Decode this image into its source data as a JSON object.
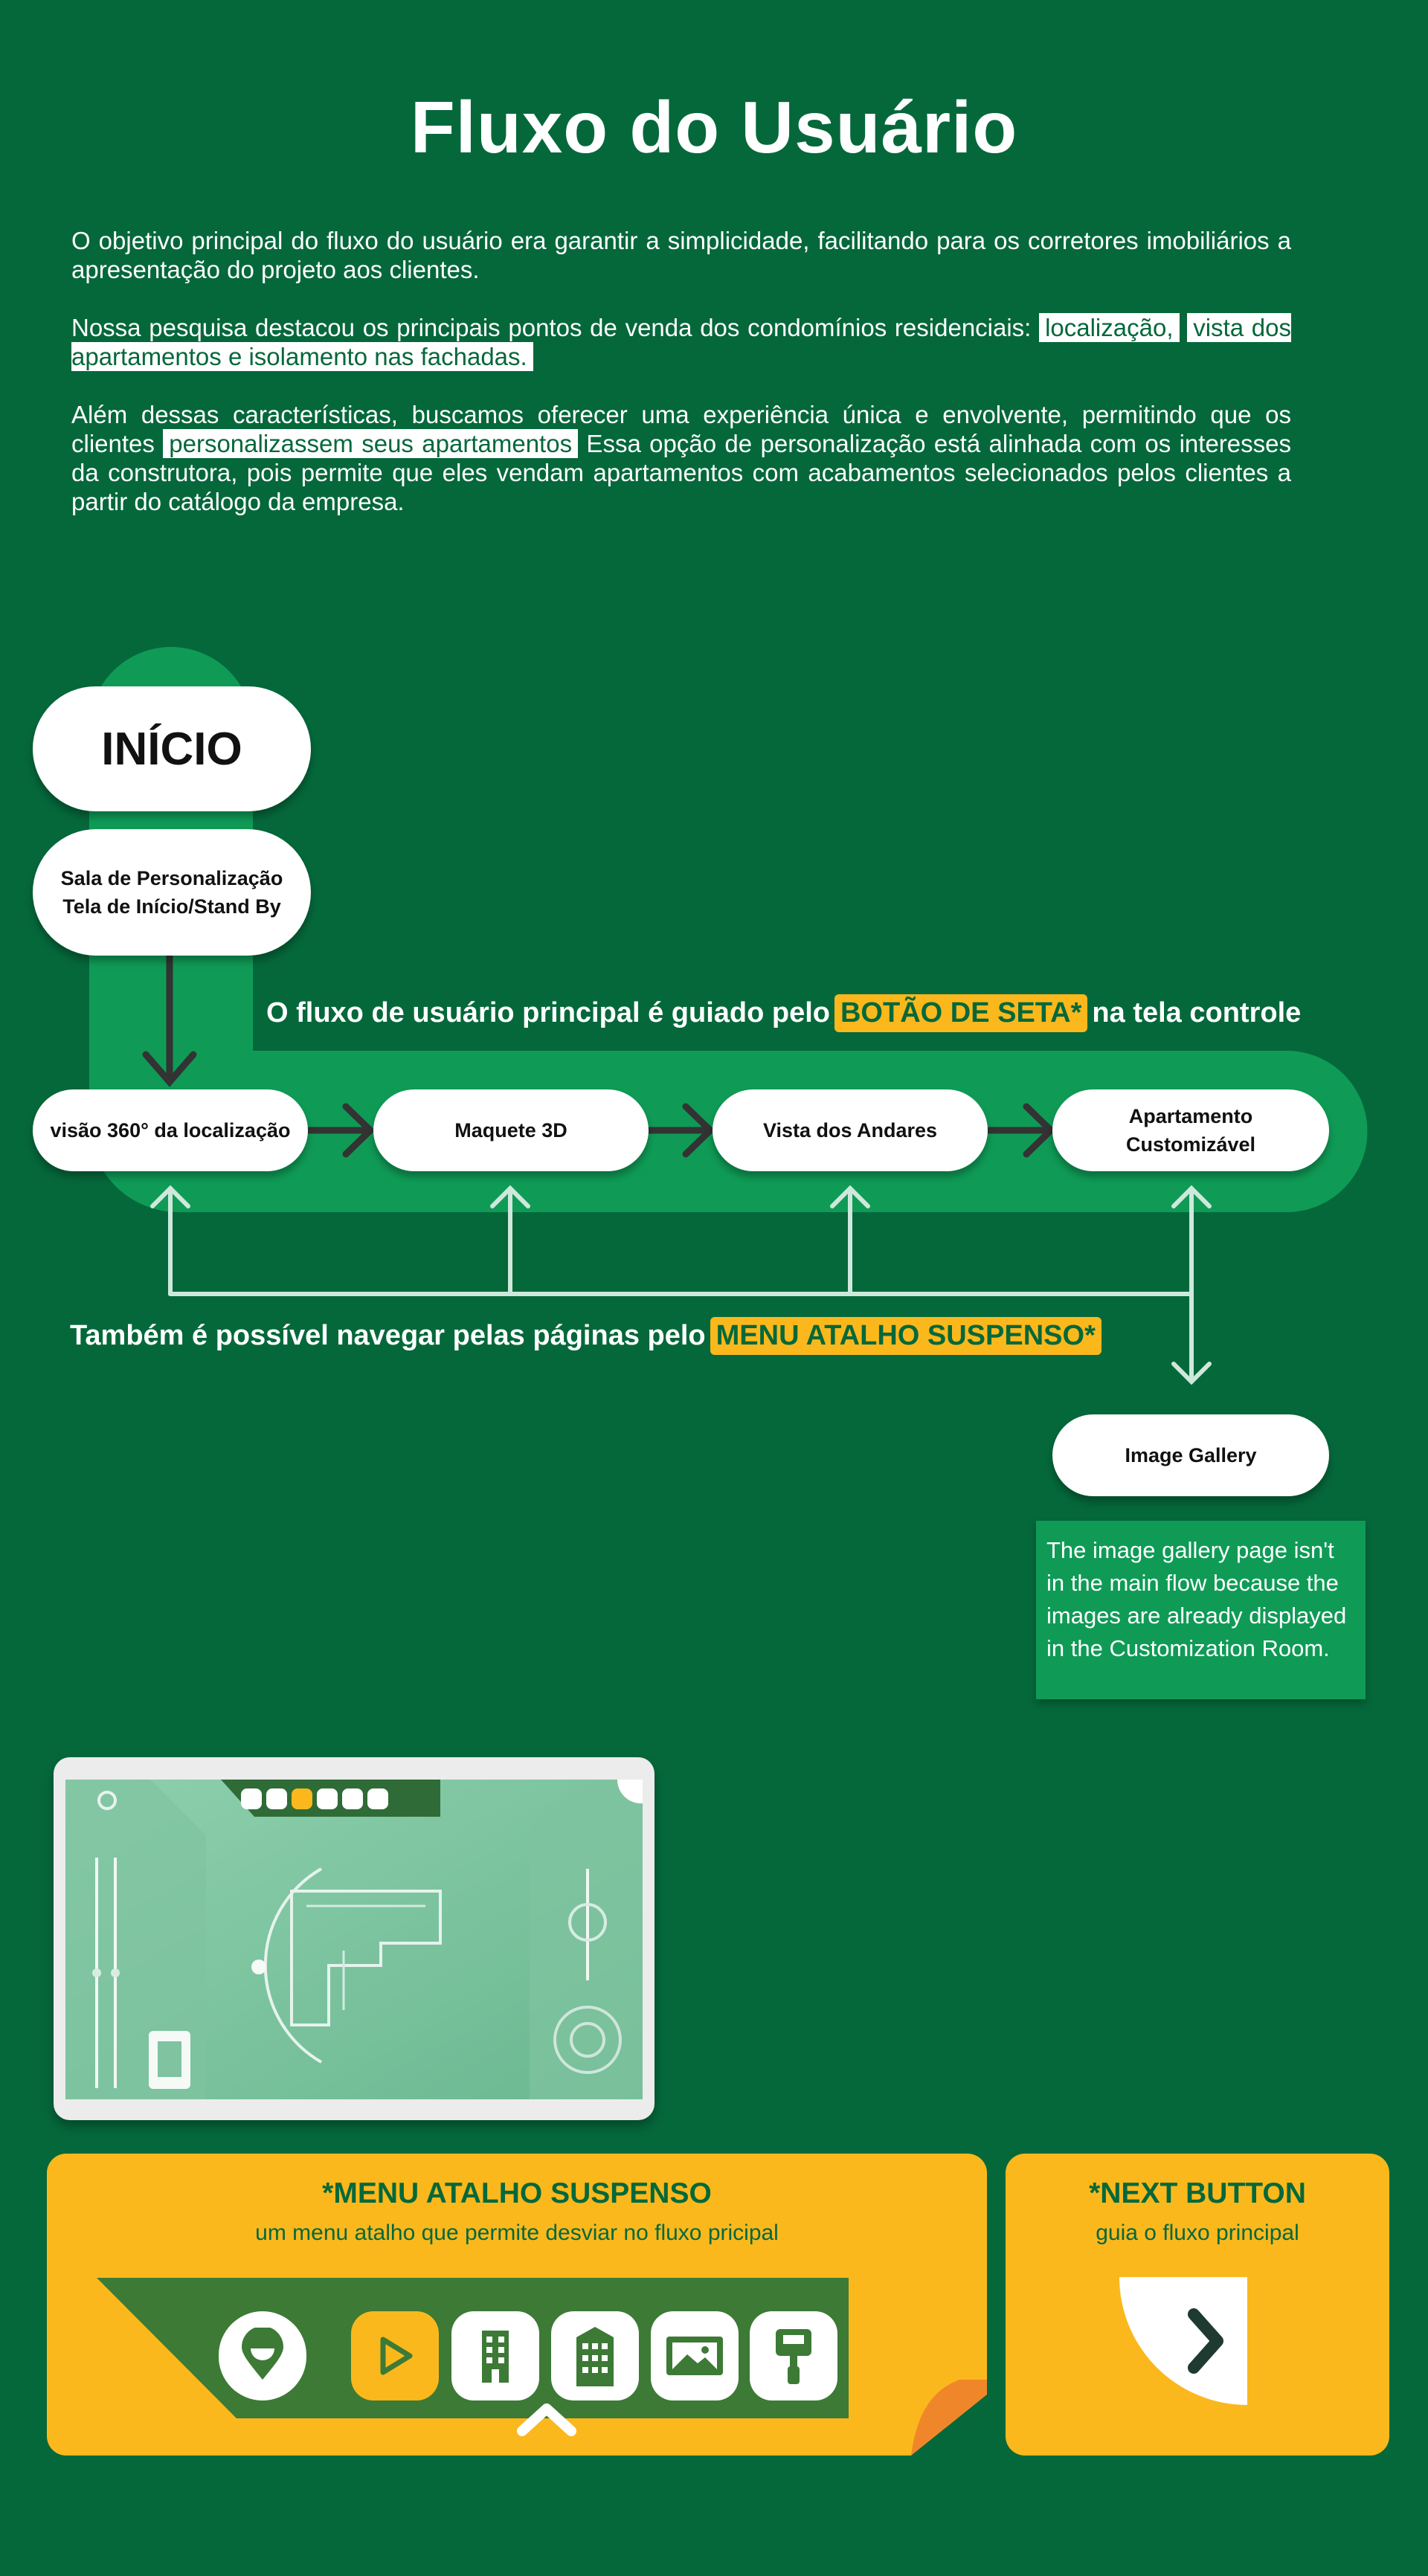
{
  "title": "Fluxo do Usuário",
  "intro": {
    "p1": "O objetivo principal do fluxo do usuário era garantir a simplicidade, facilitando para os corretores imobiliários a apresentação do projeto aos clientes.",
    "p2_text": "Nossa pesquisa destacou os principais pontos de venda dos condomínios residenciais: ",
    "p2_hl1": "localização,",
    "p2_hl2": "vista dos apartamentos e isolamento nas fachadas.",
    "p3_a": "Além dessas características, buscamos oferecer uma experiência única e envolvente, permitindo que os clientes ",
    "p3_hl": "personalizassem seus apartamentos",
    "p3_b": " Essa opção de personalização está alinhada com os interesses da construtora, pois permite que eles vendam apartamentos com acabamentos selecionados pelos clientes a partir do catálogo da empresa."
  },
  "flow": {
    "start": "INÍCIO",
    "room_line1": "Sala de Personalização",
    "room_line2": "Tela de Início/Stand By",
    "main_label_a": "O fluxo de usuário principal é guiado pelo",
    "main_label_hl": "BOTÃO DE SETA*",
    "main_label_b": "na tela controle",
    "steps": [
      "visão 360° da localização",
      "Maquete 3D",
      "Vista dos Andares"
    ],
    "step4_line1": "Apartamento",
    "step4_line2": "Customizável",
    "menu_label_a": "Também é possível navegar pelas páginas pelo",
    "menu_label_hl": "MENU ATALHO SUSPENSO*",
    "gallery": "Image Gallery",
    "gallery_note": "The image gallery page isn't in the main flow because the images are already displayed in the Customization Room."
  },
  "cards": {
    "menu_title": "*MENU ATALHO SUSPENSO",
    "menu_sub": "um menu atalho que permite desviar no fluxo pricipal",
    "next_title": "*NEXT BUTTON",
    "next_sub": "guia o fluxo principal"
  },
  "menu_icons": [
    "location-pin-icon",
    "play-icon",
    "building-icon",
    "tower-icon",
    "image-icon",
    "paint-roller-icon"
  ],
  "colors": {
    "background": "#05683b",
    "flow_band": "#0f9b56",
    "accent_yellow": "#fbb81c",
    "accent_orange": "#f0862a",
    "menu_dark_green": "#3c7a36"
  }
}
